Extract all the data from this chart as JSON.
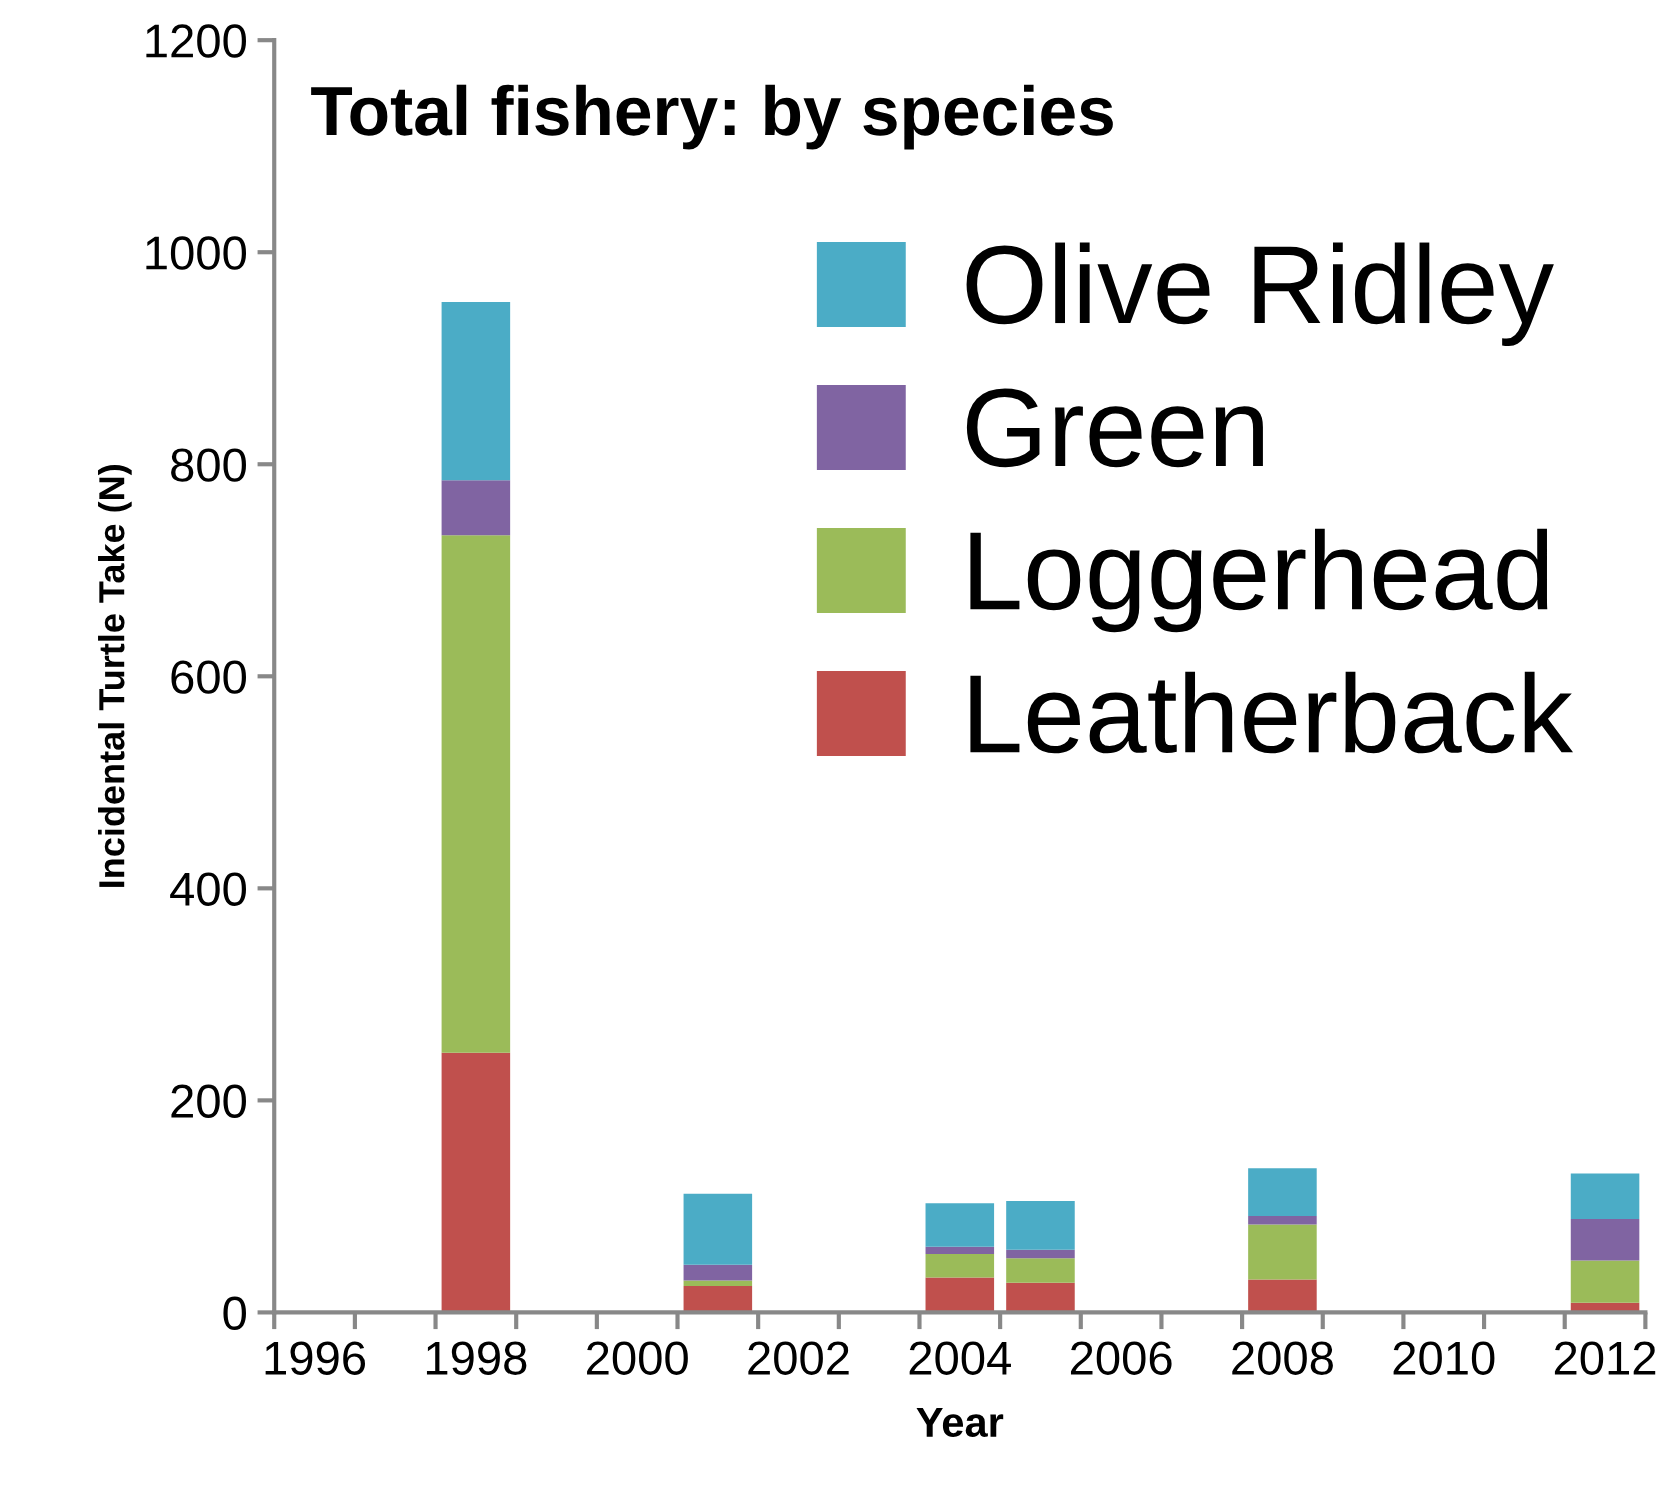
{
  "chart_data": {
    "type": "bar",
    "title": "Total fishery: by species",
    "xlabel": "Year",
    "ylabel": "Incidental Turtle Take (N)",
    "categories": [
      "1996",
      null,
      "1998",
      null,
      "2000",
      null,
      "2002",
      null,
      "2004",
      null,
      "2006",
      null,
      "2008",
      null,
      "2010",
      null,
      "2012"
    ],
    "stacked": true,
    "series": [
      {
        "name": "Leatherback",
        "color": "#c0504d",
        "values": [
          null,
          null,
          245,
          null,
          null,
          25,
          null,
          null,
          33,
          28,
          null,
          null,
          31,
          null,
          null,
          null,
          9
        ]
      },
      {
        "name": "Loggerhead",
        "color": "#9bbb59",
        "values": [
          null,
          null,
          488,
          null,
          null,
          5,
          null,
          null,
          22,
          23,
          null,
          null,
          52,
          null,
          null,
          null,
          40
        ]
      },
      {
        "name": "Green",
        "color": "#8064a2",
        "values": [
          null,
          null,
          52,
          null,
          null,
          15,
          null,
          null,
          7,
          8,
          null,
          null,
          8,
          null,
          null,
          null,
          39
        ]
      },
      {
        "name": "Olive Ridley",
        "color": "#4bacc6",
        "values": [
          null,
          null,
          168,
          null,
          null,
          67,
          null,
          null,
          41,
          46,
          null,
          null,
          45,
          null,
          null,
          null,
          43
        ]
      }
    ],
    "ylim": [
      0,
      1200
    ],
    "yticks": [
      0,
      200,
      400,
      600,
      800,
      1000,
      1200
    ],
    "grid": false,
    "legend": "top right"
  }
}
